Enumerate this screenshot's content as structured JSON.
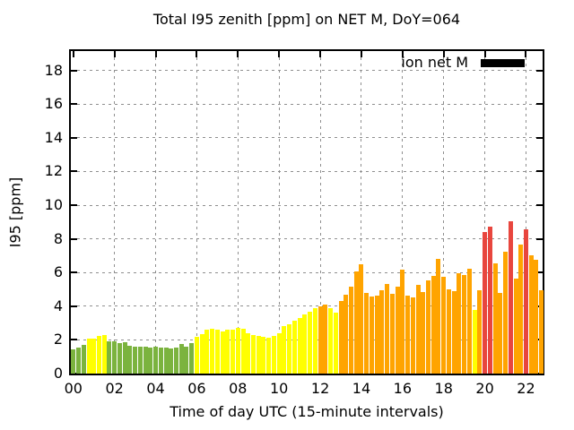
{
  "chart": {
    "title": "Total I95 zenith [ppm] on NET M, DoY=064",
    "xlabel": "Time of day UTC (15-minute intervals)",
    "ylabel": "I95 [ppm]",
    "legend_label": "ion net M"
  },
  "colors": {
    "g": "#7bb33e",
    "y": "#ffff00",
    "o": "#ffa400",
    "r": "#e8463e",
    "legend_swatch": "#000000",
    "grid": "#8f8f8f",
    "axis": "#000000",
    "background": "#ffffff"
  },
  "chart_data": {
    "type": "bar",
    "title": "Total I95 zenith [ppm] on NET M, DoY=064",
    "xlabel": "Time of day UTC (15-minute intervals)",
    "ylabel": "I95 [ppm]",
    "legend": [
      "ion net M"
    ],
    "grid": true,
    "legend_position": "top-right",
    "ylim": [
      0,
      19.15
    ],
    "xlim_hours": [
      0,
      22.8
    ],
    "y_ticks": [
      0,
      2,
      4,
      6,
      8,
      10,
      12,
      14,
      16,
      18
    ],
    "x_ticks": [
      "00",
      "02",
      "04",
      "06",
      "08",
      "10",
      "12",
      "14",
      "16",
      "18",
      "20",
      "22"
    ],
    "x_tick_interval_hours": 2,
    "bar_interval_minutes": 15,
    "color_legend": {
      "g": "green",
      "y": "yellow",
      "o": "orange",
      "r": "red"
    },
    "bars": [
      [
        "00:00",
        1.45,
        "g"
      ],
      [
        "00:15",
        1.55,
        "g"
      ],
      [
        "00:30",
        1.7,
        "g"
      ],
      [
        "00:45",
        2.05,
        "y"
      ],
      [
        "01:00",
        2.1,
        "y"
      ],
      [
        "01:15",
        2.25,
        "y"
      ],
      [
        "01:30",
        2.3,
        "y"
      ],
      [
        "01:45",
        1.9,
        "g"
      ],
      [
        "02:00",
        1.9,
        "g"
      ],
      [
        "02:15",
        1.8,
        "g"
      ],
      [
        "02:30",
        1.85,
        "g"
      ],
      [
        "02:45",
        1.65,
        "g"
      ],
      [
        "03:00",
        1.6,
        "g"
      ],
      [
        "03:15",
        1.6,
        "g"
      ],
      [
        "03:30",
        1.6,
        "g"
      ],
      [
        "03:45",
        1.55,
        "g"
      ],
      [
        "04:00",
        1.6,
        "g"
      ],
      [
        "04:15",
        1.55,
        "g"
      ],
      [
        "04:30",
        1.55,
        "g"
      ],
      [
        "04:45",
        1.5,
        "g"
      ],
      [
        "05:00",
        1.55,
        "g"
      ],
      [
        "05:15",
        1.75,
        "g"
      ],
      [
        "05:30",
        1.6,
        "g"
      ],
      [
        "05:45",
        1.8,
        "g"
      ],
      [
        "06:00",
        2.2,
        "y"
      ],
      [
        "06:15",
        2.35,
        "y"
      ],
      [
        "06:30",
        2.6,
        "y"
      ],
      [
        "06:45",
        2.65,
        "y"
      ],
      [
        "07:00",
        2.6,
        "y"
      ],
      [
        "07:15",
        2.5,
        "y"
      ],
      [
        "07:30",
        2.6,
        "y"
      ],
      [
        "07:45",
        2.6,
        "y"
      ],
      [
        "08:00",
        2.7,
        "y"
      ],
      [
        "08:15",
        2.65,
        "y"
      ],
      [
        "08:30",
        2.4,
        "y"
      ],
      [
        "08:45",
        2.3,
        "y"
      ],
      [
        "09:00",
        2.25,
        "y"
      ],
      [
        "09:15",
        2.2,
        "y"
      ],
      [
        "09:30",
        2.15,
        "y"
      ],
      [
        "09:45",
        2.25,
        "y"
      ],
      [
        "10:00",
        2.4,
        "y"
      ],
      [
        "10:15",
        2.8,
        "y"
      ],
      [
        "10:30",
        2.95,
        "y"
      ],
      [
        "10:45",
        3.15,
        "y"
      ],
      [
        "11:00",
        3.3,
        "y"
      ],
      [
        "11:15",
        3.5,
        "y"
      ],
      [
        "11:30",
        3.65,
        "y"
      ],
      [
        "11:45",
        3.9,
        "y"
      ],
      [
        "12:00",
        4.0,
        "o"
      ],
      [
        "12:15",
        4.1,
        "o"
      ],
      [
        "12:30",
        3.9,
        "y"
      ],
      [
        "12:45",
        3.6,
        "y"
      ],
      [
        "13:00",
        4.3,
        "o"
      ],
      [
        "13:15",
        4.7,
        "o"
      ],
      [
        "13:30",
        5.15,
        "o"
      ],
      [
        "13:45",
        6.05,
        "o"
      ],
      [
        "14:00",
        6.5,
        "o"
      ],
      [
        "14:15",
        4.8,
        "o"
      ],
      [
        "14:30",
        4.6,
        "o"
      ],
      [
        "14:45",
        4.65,
        "o"
      ],
      [
        "15:00",
        4.95,
        "o"
      ],
      [
        "15:15",
        5.3,
        "o"
      ],
      [
        "15:30",
        4.75,
        "o"
      ],
      [
        "15:45",
        5.15,
        "o"
      ],
      [
        "16:00",
        6.15,
        "o"
      ],
      [
        "16:15",
        4.65,
        "o"
      ],
      [
        "16:30",
        4.5,
        "o"
      ],
      [
        "16:45",
        5.25,
        "o"
      ],
      [
        "17:00",
        4.85,
        "o"
      ],
      [
        "17:15",
        5.55,
        "o"
      ],
      [
        "17:30",
        5.8,
        "o"
      ],
      [
        "17:45",
        6.8,
        "o"
      ],
      [
        "18:00",
        5.75,
        "o"
      ],
      [
        "18:15",
        5.0,
        "o"
      ],
      [
        "18:30",
        4.9,
        "o"
      ],
      [
        "18:45",
        5.95,
        "o"
      ],
      [
        "19:00",
        5.85,
        "o"
      ],
      [
        "19:15",
        6.25,
        "o"
      ],
      [
        "19:30",
        3.8,
        "y"
      ],
      [
        "19:45",
        4.95,
        "o"
      ],
      [
        "20:00",
        8.4,
        "r"
      ],
      [
        "20:15",
        8.75,
        "r"
      ],
      [
        "20:30",
        6.55,
        "o"
      ],
      [
        "20:45",
        4.8,
        "o"
      ],
      [
        "21:00",
        7.25,
        "o"
      ],
      [
        "21:15",
        9.05,
        "r"
      ],
      [
        "21:30",
        5.65,
        "o"
      ],
      [
        "21:45",
        7.65,
        "o"
      ],
      [
        "22:00",
        8.55,
        "r"
      ],
      [
        "22:15",
        7.0,
        "o"
      ],
      [
        "22:30",
        6.75,
        "o"
      ],
      [
        "22:45",
        4.95,
        "o"
      ]
    ]
  }
}
